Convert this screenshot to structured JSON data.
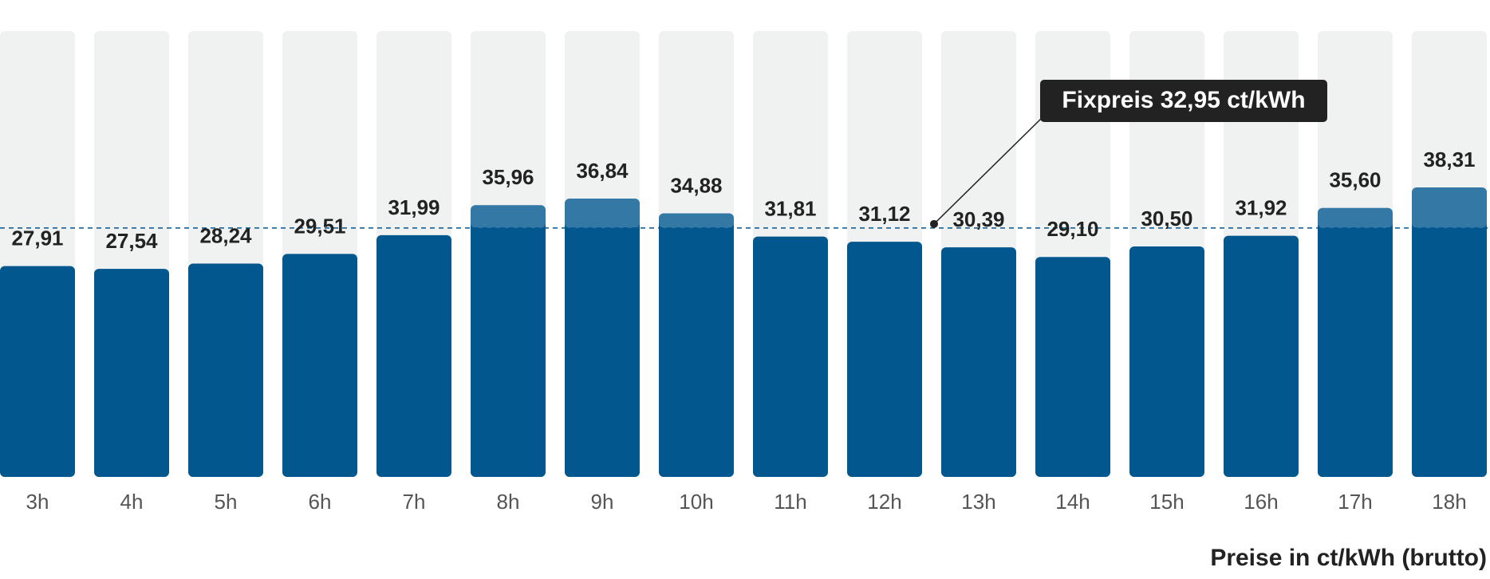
{
  "chart_data": {
    "type": "bar",
    "categories": [
      "3h",
      "4h",
      "5h",
      "6h",
      "7h",
      "8h",
      "9h",
      "10h",
      "11h",
      "12h",
      "13h",
      "14h",
      "15h",
      "16h",
      "17h",
      "18h"
    ],
    "values": [
      27.91,
      27.54,
      28.24,
      29.51,
      31.99,
      35.96,
      36.84,
      34.88,
      31.81,
      31.12,
      30.39,
      29.1,
      30.5,
      31.92,
      35.6,
      38.31
    ],
    "value_labels": [
      "27,91",
      "27,54",
      "28,24",
      "29,51",
      "31,99",
      "35,96",
      "36,84",
      "34,88",
      "31,81",
      "31,12",
      "30,39",
      "29,10",
      "30,50",
      "31,92",
      "35,60",
      "38,31"
    ],
    "color": "#02578f",
    "background_color": "#f0f1f1",
    "ylim": [
      0,
      59
    ],
    "reference": {
      "value": 32.95,
      "label": "Fixpreis 32,95 ct/kWh"
    },
    "axis_label": "Preise in ct/kWh (brutto)"
  }
}
